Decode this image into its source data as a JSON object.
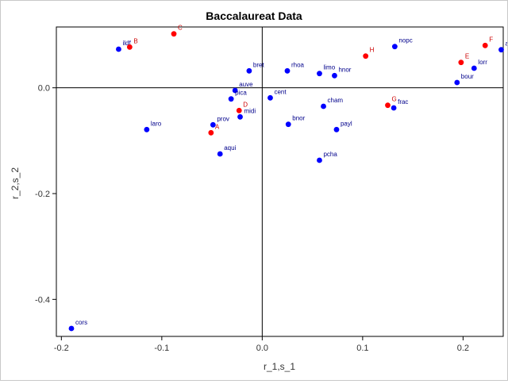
{
  "colors": {
    "background": "#ffffff",
    "axis": "#000000",
    "blue_points": "#0000ff",
    "blue_labels": "#00008b",
    "red_points": "#ff0000",
    "red_labels": "#cc0000"
  },
  "chart_data": {
    "type": "scatter",
    "title": "Baccalaureat Data",
    "xlabel": "r_1,s_1",
    "ylabel": "r_2,s_2",
    "xlim": [
      -0.205,
      0.24
    ],
    "ylim": [
      -0.47,
      0.115
    ],
    "xticks": [
      -0.2,
      -0.1,
      0.0,
      0.1,
      0.2
    ],
    "xtick_labels": [
      "-0.2",
      "-0.1",
      "0.0",
      "0.1",
      "0.2"
    ],
    "yticks": [
      0.0,
      -0.2,
      -0.4
    ],
    "ytick_labels": [
      "0.0",
      "-0.2",
      "-0.4"
    ],
    "reference_lines": {
      "x": 0,
      "y": 0
    },
    "series": [
      {
        "color": "#0000ff",
        "points": [
          {
            "label": "ildf",
            "x": -0.143,
            "y": 0.073
          },
          {
            "label": "bret",
            "x": -0.013,
            "y": 0.032
          },
          {
            "label": "rhoa",
            "x": 0.025,
            "y": 0.032
          },
          {
            "label": "limo",
            "x": 0.057,
            "y": 0.027
          },
          {
            "label": "hnor",
            "x": 0.072,
            "y": 0.023
          },
          {
            "label": "nopc",
            "x": 0.132,
            "y": 0.078
          },
          {
            "label": "alsa",
            "x": 0.238,
            "y": 0.072
          },
          {
            "label": "lorr",
            "x": 0.211,
            "y": 0.037
          },
          {
            "label": "bour",
            "x": 0.194,
            "y": 0.01
          },
          {
            "label": "auve",
            "x": -0.027,
            "y": -0.005
          },
          {
            "label": "cent",
            "x": 0.008,
            "y": -0.019
          },
          {
            "label": "pica",
            "x": -0.031,
            "y": -0.021
          },
          {
            "label": "cham",
            "x": 0.061,
            "y": -0.035
          },
          {
            "label": "frac",
            "x": 0.131,
            "y": -0.038
          },
          {
            "label": "midi",
            "x": -0.022,
            "y": -0.055
          },
          {
            "label": "prov",
            "x": -0.049,
            "y": -0.07
          },
          {
            "label": "bnor",
            "x": 0.026,
            "y": -0.069
          },
          {
            "label": "payl",
            "x": 0.074,
            "y": -0.079
          },
          {
            "label": "laro",
            "x": -0.115,
            "y": -0.079
          },
          {
            "label": "aqui",
            "x": -0.042,
            "y": -0.125
          },
          {
            "label": "pcha",
            "x": 0.057,
            "y": -0.137
          },
          {
            "label": "cors",
            "x": -0.19,
            "y": -0.455
          }
        ]
      },
      {
        "color": "#ff0000",
        "points": [
          {
            "label": "B",
            "x": -0.132,
            "y": 0.077
          },
          {
            "label": "C",
            "x": -0.088,
            "y": 0.102
          },
          {
            "label": "H",
            "x": 0.103,
            "y": 0.06
          },
          {
            "label": "F",
            "x": 0.222,
            "y": 0.08
          },
          {
            "label": "E",
            "x": 0.198,
            "y": 0.048
          },
          {
            "label": "D",
            "x": -0.023,
            "y": -0.043
          },
          {
            "label": "G",
            "x": 0.125,
            "y": -0.033
          },
          {
            "label": "A",
            "x": -0.051,
            "y": -0.085
          }
        ]
      }
    ]
  }
}
